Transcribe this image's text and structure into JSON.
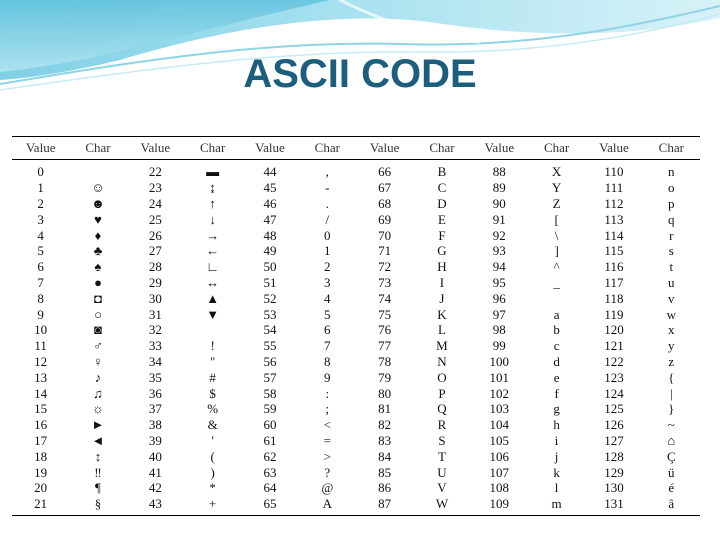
{
  "title": "ASCII CODE",
  "table": {
    "headers": [
      "Value",
      "Char",
      "Value",
      "Char",
      "Value",
      "Char",
      "Value",
      "Char",
      "Value",
      "Char",
      "Value",
      "Char"
    ],
    "rows": [
      [
        "0",
        "",
        "22",
        "▬",
        "44",
        ",",
        "66",
        "B",
        "88",
        "X",
        "110",
        "n"
      ],
      [
        "1",
        "☺",
        "23",
        "↨",
        "45",
        "-",
        "67",
        "C",
        "89",
        "Y",
        "111",
        "o"
      ],
      [
        "2",
        "☻",
        "24",
        "↑",
        "46",
        ".",
        "68",
        "D",
        "90",
        "Z",
        "112",
        "p"
      ],
      [
        "3",
        "♥",
        "25",
        "↓",
        "47",
        "/",
        "69",
        "E",
        "91",
        "[",
        "113",
        "q"
      ],
      [
        "4",
        "♦",
        "26",
        "→",
        "48",
        "0",
        "70",
        "F",
        "92",
        "\\",
        "114",
        "r"
      ],
      [
        "5",
        "♣",
        "27",
        "←",
        "49",
        "1",
        "71",
        "G",
        "93",
        "]",
        "115",
        "s"
      ],
      [
        "6",
        "♠",
        "28",
        "∟",
        "50",
        "2",
        "72",
        "H",
        "94",
        "^",
        "116",
        "t"
      ],
      [
        "7",
        "●",
        "29",
        "↔",
        "51",
        "3",
        "73",
        "I",
        "95",
        "_",
        "117",
        "u"
      ],
      [
        "8",
        "◘",
        "30",
        "▲",
        "52",
        "4",
        "74",
        "J",
        "96",
        "",
        "118",
        "v"
      ],
      [
        "9",
        "○",
        "31",
        "▼",
        "53",
        "5",
        "75",
        "K",
        "97",
        "a",
        "119",
        "w"
      ],
      [
        "10",
        "◙",
        "32",
        "",
        "54",
        "6",
        "76",
        "L",
        "98",
        "b",
        "120",
        "x"
      ],
      [
        "11",
        "♂",
        "33",
        "!",
        "55",
        "7",
        "77",
        "M",
        "99",
        "c",
        "121",
        "y"
      ],
      [
        "12",
        "♀",
        "34",
        "\"",
        "56",
        "8",
        "78",
        "N",
        "100",
        "d",
        "122",
        "z"
      ],
      [
        "13",
        "♪",
        "35",
        "#",
        "57",
        "9",
        "79",
        "O",
        "101",
        "e",
        "123",
        "{"
      ],
      [
        "14",
        "♫",
        "36",
        "$",
        "58",
        ":",
        "80",
        "P",
        "102",
        "f",
        "124",
        "|"
      ],
      [
        "15",
        "☼",
        "37",
        "%",
        "59",
        ";",
        "81",
        "Q",
        "103",
        "g",
        "125",
        "}"
      ],
      [
        "16",
        "►",
        "38",
        "&",
        "60",
        "<",
        "82",
        "R",
        "104",
        "h",
        "126",
        "~"
      ],
      [
        "17",
        "◄",
        "39",
        "'",
        "61",
        "=",
        "83",
        "S",
        "105",
        "i",
        "127",
        "⌂"
      ],
      [
        "18",
        "↕",
        "40",
        "(",
        "62",
        ">",
        "84",
        "T",
        "106",
        "j",
        "128",
        "Ç"
      ],
      [
        "19",
        "‼",
        "41",
        ")",
        "63",
        "?",
        "85",
        "U",
        "107",
        "k",
        "129",
        "ü"
      ],
      [
        "20",
        "¶",
        "42",
        "*",
        "64",
        "@",
        "86",
        "V",
        "108",
        "l",
        "130",
        "é"
      ],
      [
        "21",
        "§",
        "43",
        "+",
        "65",
        "A",
        "87",
        "W",
        "109",
        "m",
        "131",
        "â"
      ]
    ]
  }
}
